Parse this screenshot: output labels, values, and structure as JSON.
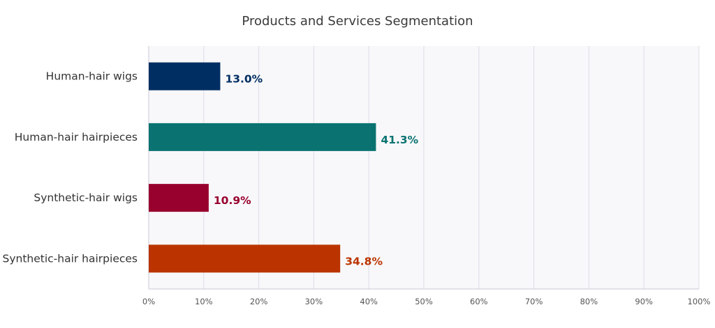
{
  "chart_data": {
    "type": "bar",
    "orientation": "horizontal",
    "title": "Products and Services Segmentation",
    "xlabel": "",
    "ylabel": "",
    "xlim": [
      0,
      100
    ],
    "x_ticks": [
      "0%",
      "10%",
      "20%",
      "30%",
      "40%",
      "50%",
      "60%",
      "70%",
      "80%",
      "90%",
      "100%"
    ],
    "grid": true,
    "categories": [
      "Human-hair wigs",
      "Human-hair hairpieces",
      "Synthetic-hair wigs",
      "Synthetic-hair hairpieces"
    ],
    "values": [
      13.0,
      41.3,
      10.9,
      34.8
    ],
    "value_labels": [
      "13.0%",
      "41.3%",
      "10.9%",
      "34.8%"
    ],
    "colors": [
      "#002e62",
      "#0a7371",
      "#98002e",
      "#bb3400"
    ]
  }
}
